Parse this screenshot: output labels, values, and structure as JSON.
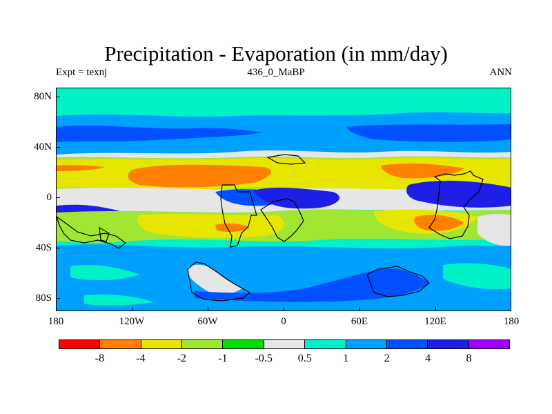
{
  "title": "Precipitation - Evaporation (in mm/day)",
  "subtitle_left": "Expt = texnj",
  "subtitle_center": "436_0_MaBP",
  "subtitle_right": "ANN",
  "y_ticks": [
    "80N",
    "40N",
    "0",
    "40S",
    "80S"
  ],
  "x_ticks": [
    "180",
    "120W",
    "60W",
    "0",
    "60E",
    "120E",
    "180"
  ],
  "colorbar": {
    "colors": [
      "#ff0000",
      "#ff8000",
      "#e6e600",
      "#a0e632",
      "#00dc00",
      "#e6e6e6",
      "#00f0c8",
      "#00a0ff",
      "#0050ff",
      "#1e1ee6",
      "#a000ff"
    ],
    "labels": [
      "-8",
      "-4",
      "-2",
      "-1",
      "-0.5",
      "0.5",
      "1",
      "2",
      "4",
      "8"
    ]
  },
  "colors": {
    "orange": "#ff8000",
    "yellow": "#e6e600",
    "lightgreen": "#a0e632",
    "green": "#00dc00",
    "gray": "#e6e6e6",
    "cyan": "#00f0c8",
    "lightblue": "#00a0ff",
    "blue": "#0050ff",
    "darkblue": "#1e1ee6"
  }
}
